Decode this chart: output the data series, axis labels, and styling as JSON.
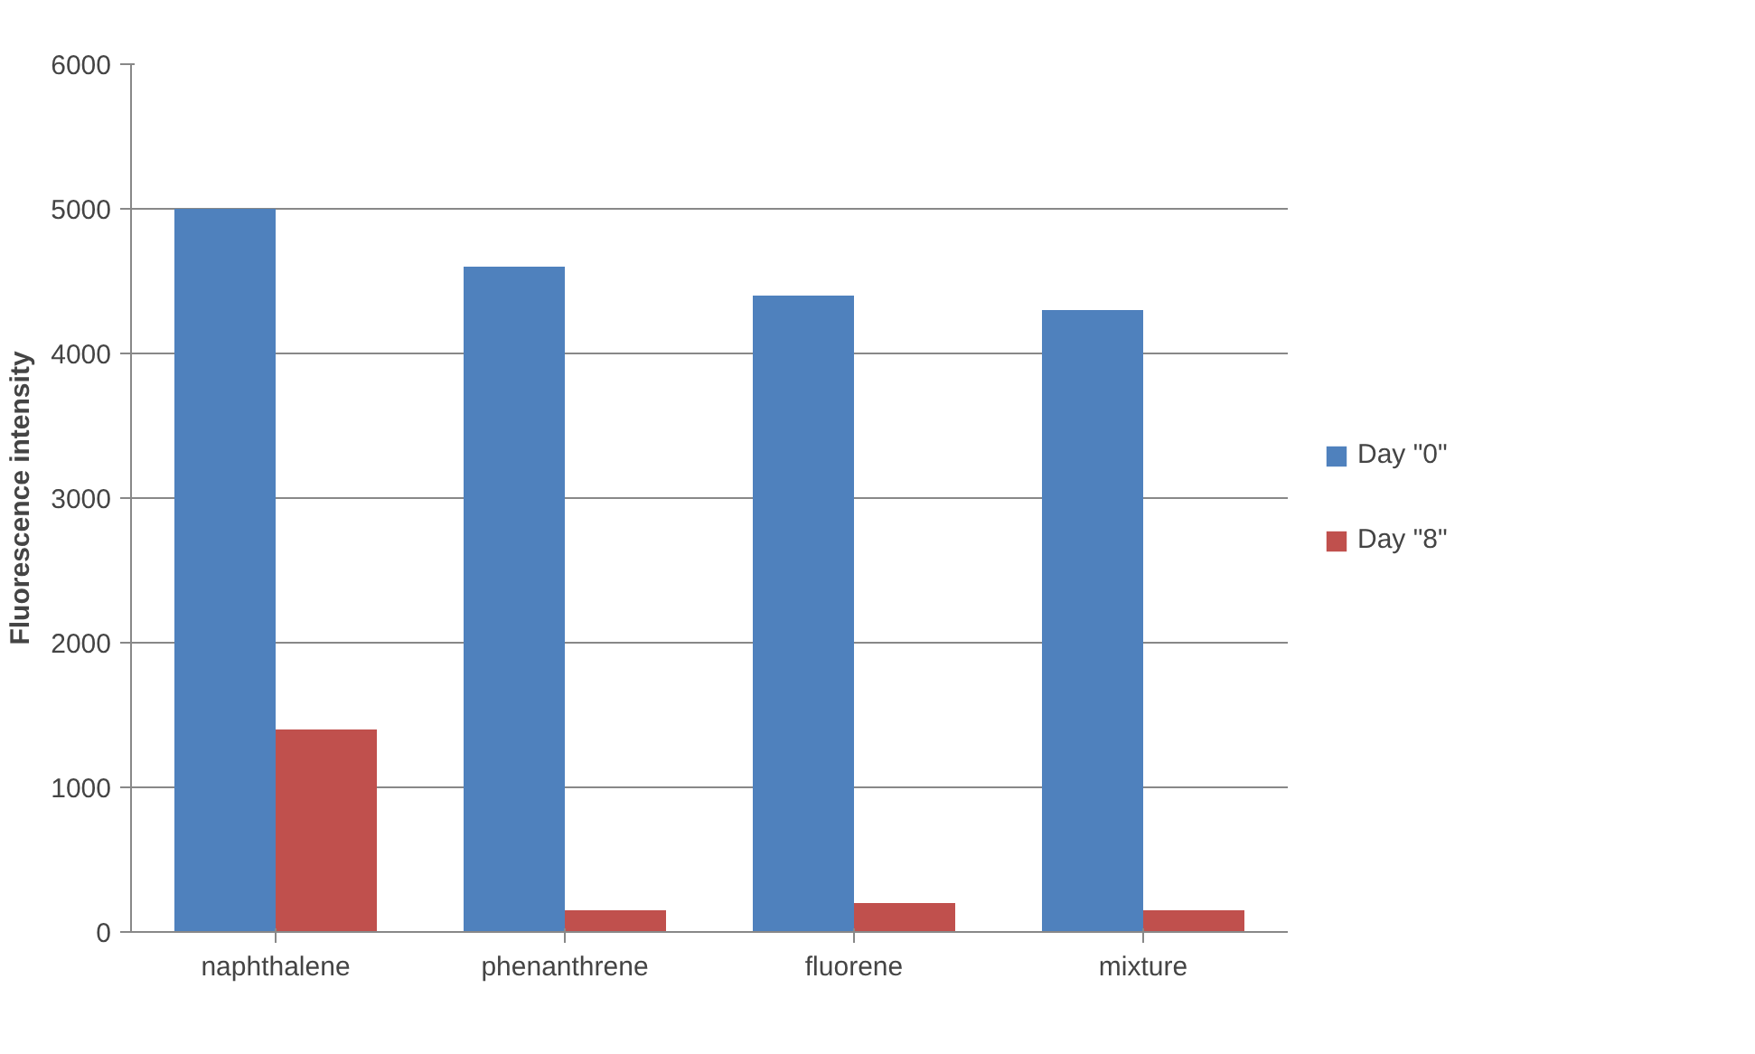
{
  "chart_data": {
    "type": "bar",
    "ylabel": "Fluorescence intensity",
    "categories": [
      "naphthalene",
      "phenanthrene",
      "fluorene",
      "mixture"
    ],
    "series": [
      {
        "name": "Day \"0\"",
        "color": "#4f81bd",
        "values": [
          5000,
          4600,
          4400,
          4300
        ]
      },
      {
        "name": "Day \"8\"",
        "color": "#c0504d",
        "values": [
          1400,
          150,
          200,
          150
        ]
      }
    ],
    "ylim": [
      0,
      6000
    ],
    "yticks": [
      0,
      1000,
      2000,
      3000,
      4000,
      5000,
      6000
    ],
    "grid": "y",
    "legend": "right"
  }
}
